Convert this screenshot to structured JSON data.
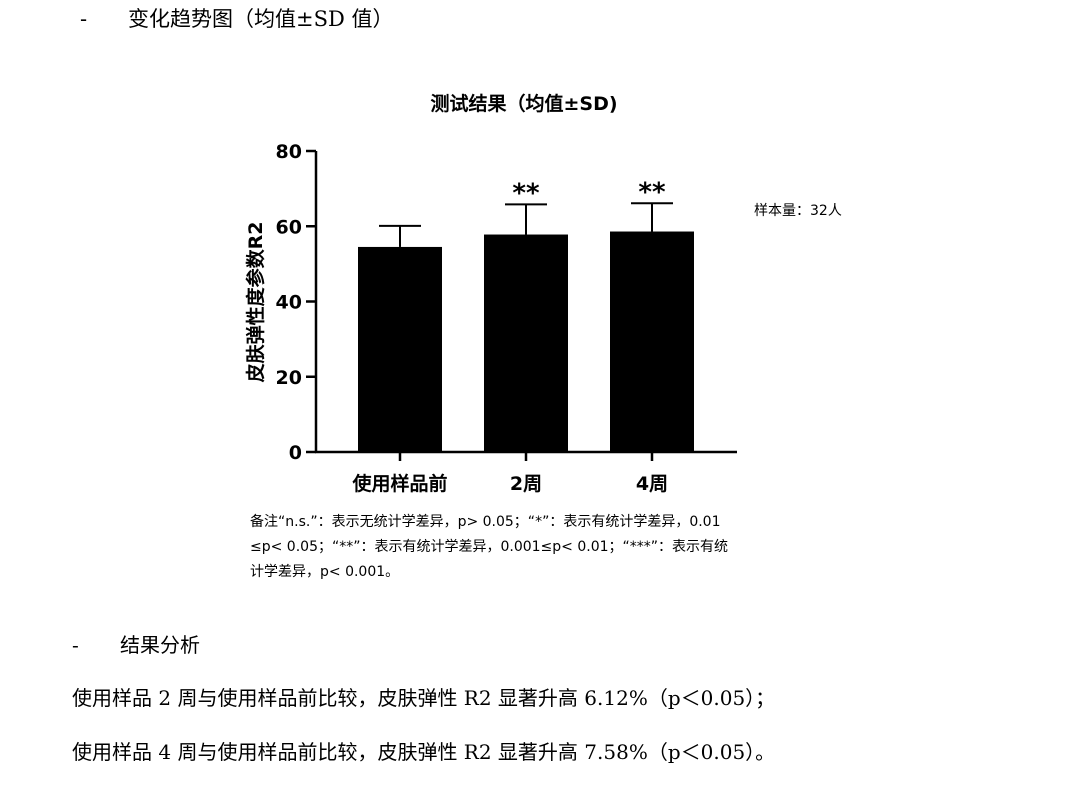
{
  "section1": {
    "bullet": "-",
    "title": "变化趋势图（均值±SD 值）"
  },
  "chart_data": {
    "type": "bar",
    "title": "测试结果（均值±SD)",
    "ylabel": "皮肤弹性度参数R2",
    "xlabel": "",
    "ylim": [
      0,
      80
    ],
    "yticks": [
      0,
      20,
      40,
      60,
      80
    ],
    "categories": [
      "使用样品前",
      "2周",
      "4周"
    ],
    "values": [
      54.5,
      57.8,
      58.6
    ],
    "error_upper": [
      60.1,
      65.8,
      66.1
    ],
    "significance": [
      "",
      "**",
      "**"
    ],
    "bar_color": "#000000",
    "annotation": "样本量：32人"
  },
  "footnote": {
    "line1": "备注“n.s.”：表示无统计学差异，p> 0.05；“*”：表示有统计学差异，0.01",
    "line2": "≤p< 0.05；“**”：表示有统计学差异，0.001≤p< 0.01；“***”：表示有统",
    "line3": "计学差异，p< 0.001。"
  },
  "section2": {
    "bullet": "-",
    "title": "结果分析"
  },
  "analysis": [
    "使用样品 2 周与使用样品前比较，皮肤弹性 R2 显著升高 6.12%（p＜0.05）；",
    "使用样品 4 周与使用样品前比较，皮肤弹性 R2 显著升高 7.58%（p＜0.05）。"
  ]
}
